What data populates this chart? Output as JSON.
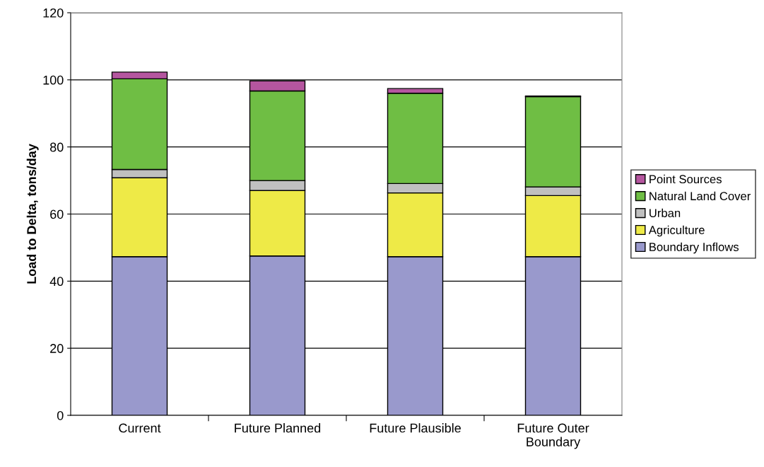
{
  "chart_data": {
    "type": "bar",
    "stacked": true,
    "ylabel": "Load to Delta, tons/day",
    "categories": [
      "Current",
      "Future Planned",
      "Future Plausible",
      "Future Outer\nBoundary"
    ],
    "series": [
      {
        "name": "Boundary Inflows",
        "color": "#9999cc",
        "values": [
          47.3,
          47.5,
          47.3,
          47.3
        ]
      },
      {
        "name": "Agriculture",
        "color": "#eeea47",
        "values": [
          23.5,
          19.5,
          19.0,
          18.2
        ]
      },
      {
        "name": "Urban",
        "color": "#c0c0c0",
        "values": [
          2.5,
          3.0,
          2.8,
          2.6
        ]
      },
      {
        "name": "Natural Land Cover",
        "color": "#6fbe44",
        "values": [
          27.0,
          26.7,
          26.9,
          26.9
        ]
      },
      {
        "name": "Point Sources",
        "color": "#b5569f",
        "values": [
          2.0,
          3.0,
          1.4,
          0.2
        ]
      }
    ],
    "ylim": [
      0,
      120
    ],
    "yticks": [
      0,
      20,
      40,
      60,
      80,
      100,
      120
    ],
    "grid": "y",
    "legend": "right"
  }
}
